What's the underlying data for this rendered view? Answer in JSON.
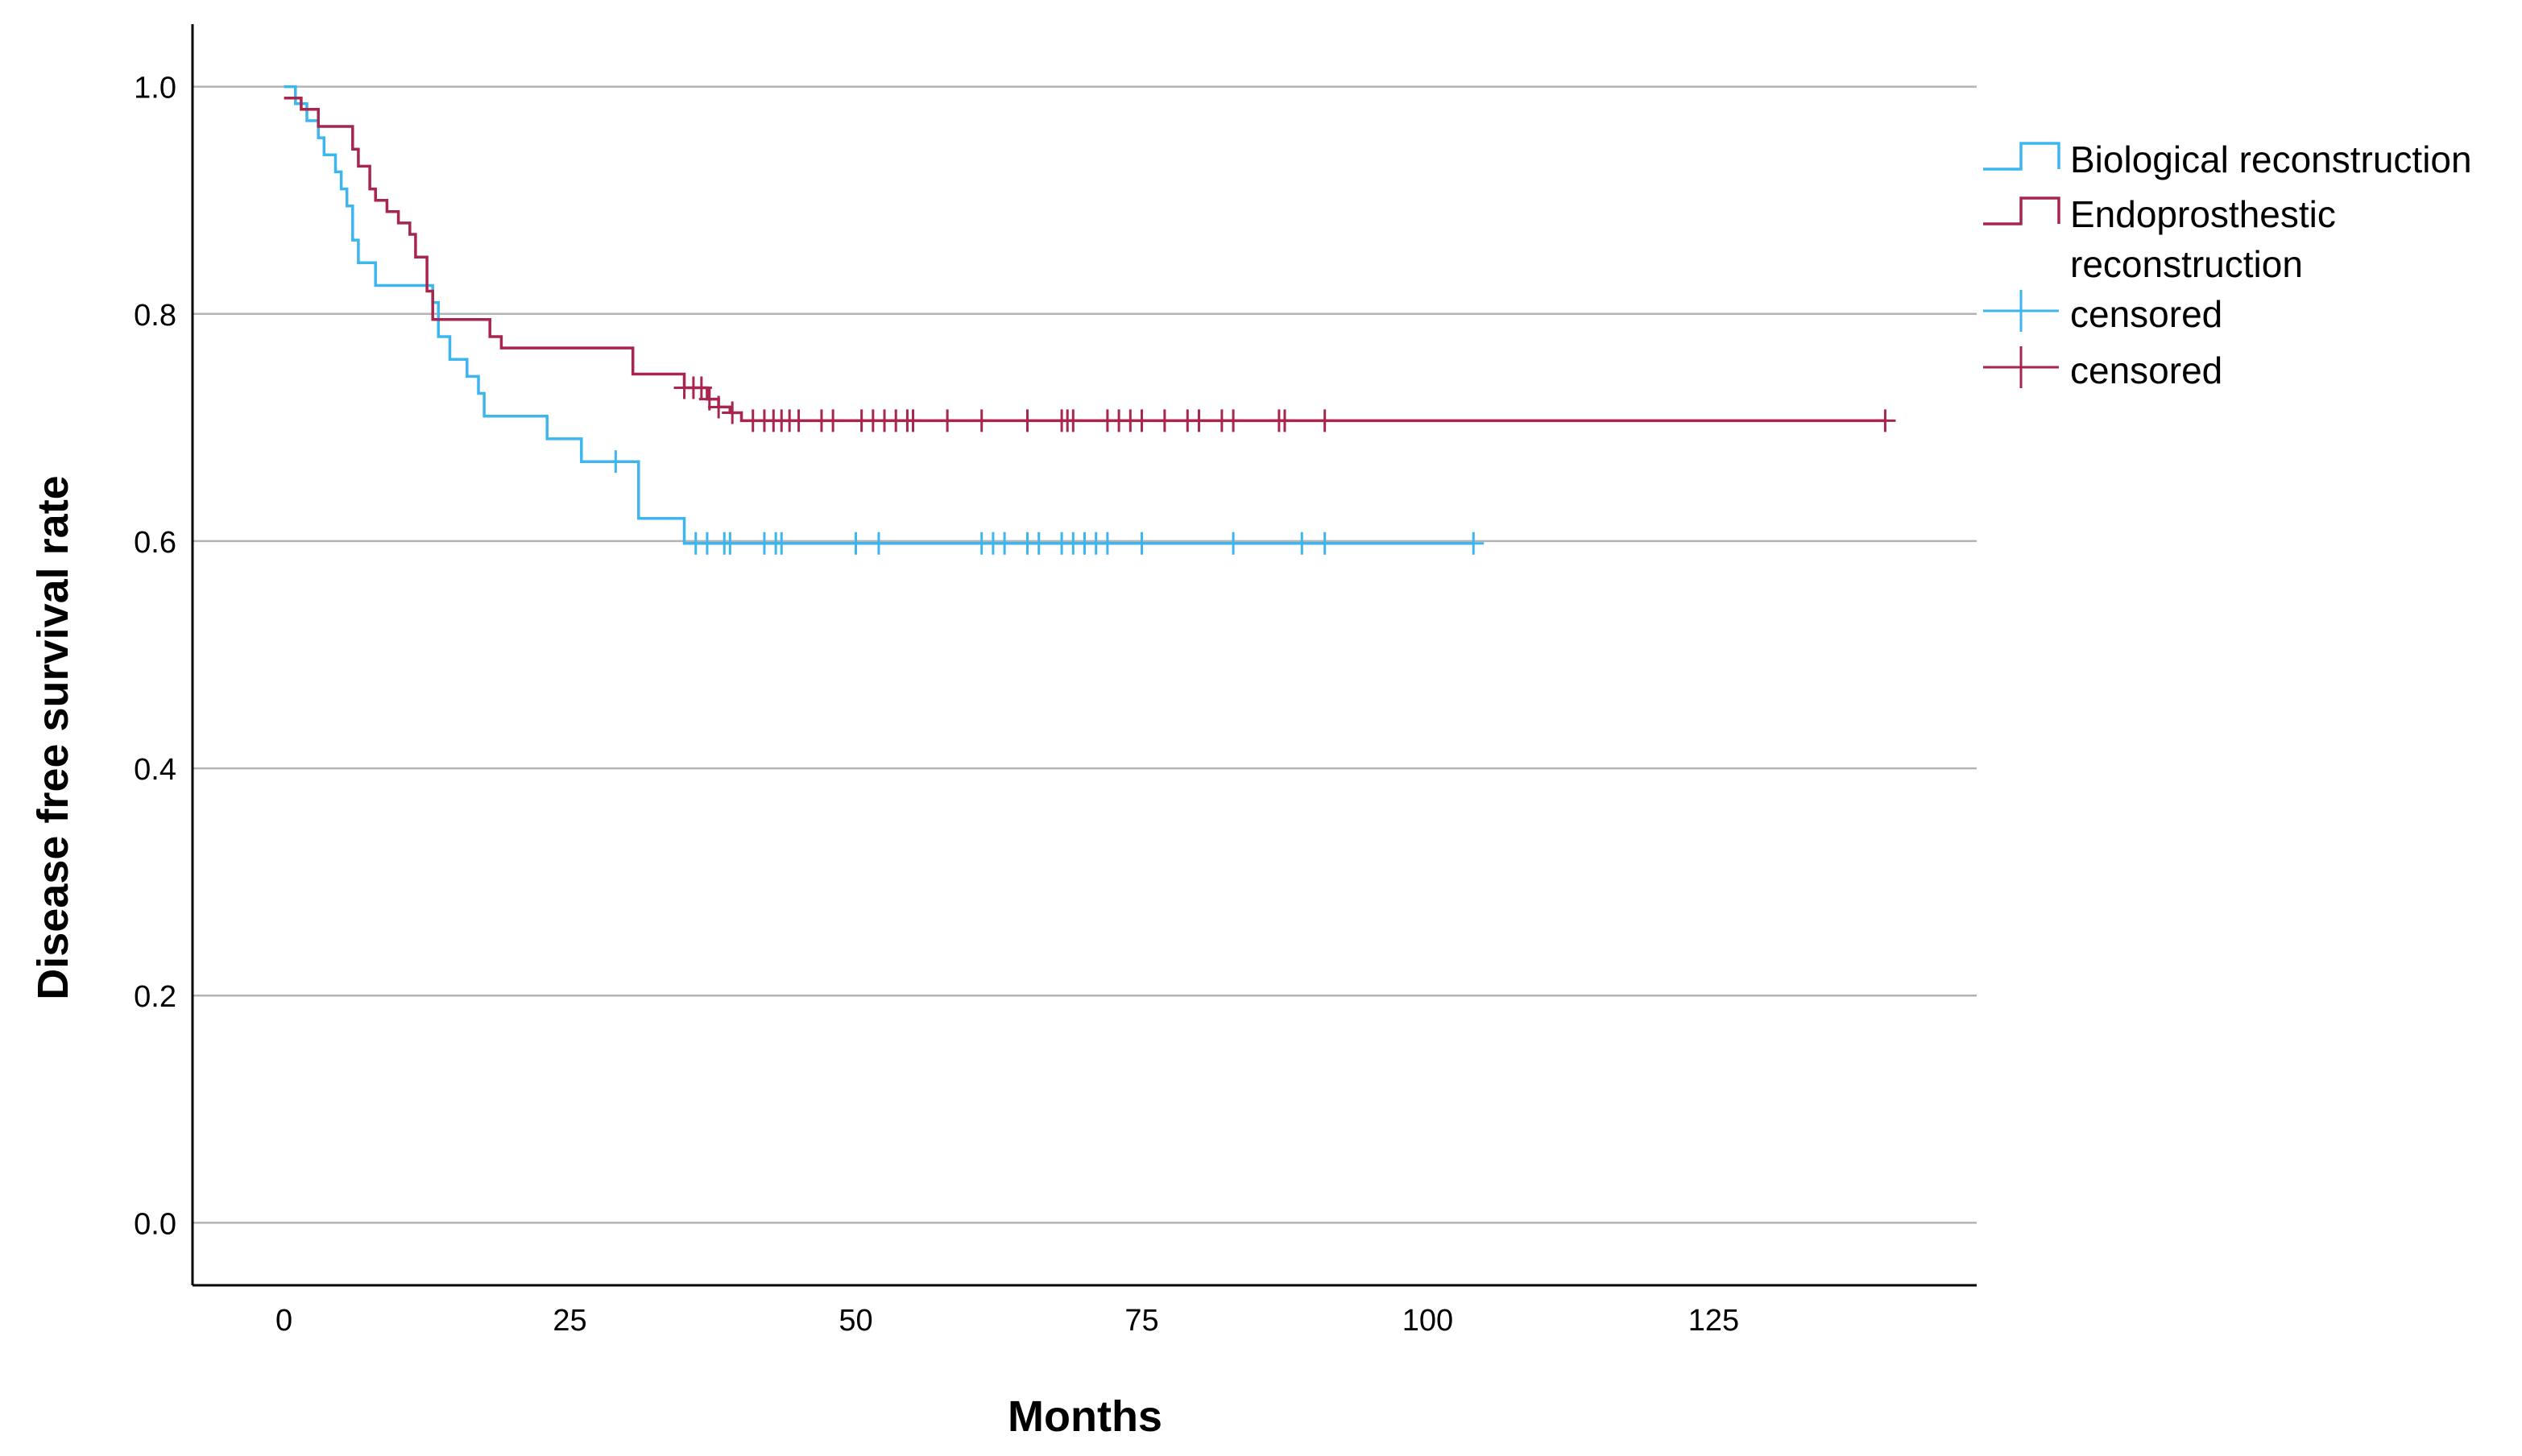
{
  "chart_data": {
    "type": "line",
    "title": "",
    "xlabel": "Months",
    "ylabel": "Disease free survival rate",
    "xlim": [
      -8,
      148
    ],
    "ylim": [
      -0.055,
      1.055
    ],
    "x_ticks": [
      0,
      25,
      50,
      75,
      100,
      125
    ],
    "x_tick_labels": [
      "0",
      "25",
      "50",
      "75",
      "100",
      "125"
    ],
    "y_ticks": [
      0.0,
      0.2,
      0.4,
      0.6,
      0.8,
      1.0
    ],
    "y_tick_labels": [
      "0.0",
      "0.2",
      "0.4",
      "0.6",
      "0.8",
      "1.0"
    ],
    "grid": "horizontal",
    "legend_position": "right",
    "legend": [
      {
        "label_lines": [
          "Biological reconstruction"
        ],
        "color": "#3db6ef",
        "symbol": "step"
      },
      {
        "label_lines": [
          "Endoprosthestic",
          "reconstruction"
        ],
        "color": "#a8264e",
        "symbol": "step"
      },
      {
        "label_lines": [
          "censored"
        ],
        "color": "#3db6ef",
        "symbol": "cross"
      },
      {
        "label_lines": [
          "censored"
        ],
        "color": "#a8264e",
        "symbol": "cross"
      }
    ],
    "series": [
      {
        "name": "Biological reconstruction",
        "color": "#3db6ef",
        "steps": [
          [
            0,
            1.0
          ],
          [
            1,
            0.985
          ],
          [
            2,
            0.97
          ],
          [
            3,
            0.955
          ],
          [
            3.5,
            0.94
          ],
          [
            4.5,
            0.925
          ],
          [
            5,
            0.91
          ],
          [
            5.5,
            0.895
          ],
          [
            6,
            0.865
          ],
          [
            6.5,
            0.845
          ],
          [
            8,
            0.825
          ],
          [
            13,
            0.81
          ],
          [
            13.5,
            0.78
          ],
          [
            14.5,
            0.76
          ],
          [
            16,
            0.745
          ],
          [
            17,
            0.73
          ],
          [
            17.5,
            0.71
          ],
          [
            23,
            0.69
          ],
          [
            26,
            0.67
          ],
          [
            31,
            0.62
          ],
          [
            35,
            0.598
          ],
          [
            104,
            0.598
          ]
        ],
        "censored": [
          29,
          36,
          37,
          38.5,
          39,
          42,
          43,
          43.5,
          50,
          52,
          61,
          62,
          63,
          65,
          66,
          68,
          69,
          70,
          71,
          72,
          75,
          83,
          89,
          91,
          104
        ]
      },
      {
        "name": "Endoprosthestic reconstruction",
        "color": "#a8264e",
        "steps": [
          [
            0,
            0.99
          ],
          [
            1.5,
            0.98
          ],
          [
            3,
            0.965
          ],
          [
            6,
            0.945
          ],
          [
            6.5,
            0.93
          ],
          [
            7.5,
            0.91
          ],
          [
            8,
            0.9
          ],
          [
            9,
            0.89
          ],
          [
            10,
            0.88
          ],
          [
            11,
            0.87
          ],
          [
            11.5,
            0.85
          ],
          [
            12.5,
            0.82
          ],
          [
            13,
            0.795
          ],
          [
            18,
            0.78
          ],
          [
            19,
            0.77
          ],
          [
            30.5,
            0.747
          ],
          [
            35,
            0.735
          ],
          [
            37,
            0.725
          ],
          [
            38,
            0.718
          ],
          [
            39,
            0.713
          ],
          [
            40,
            0.706
          ],
          [
            140,
            0.706
          ]
        ],
        "censored": [
          35,
          35.8,
          36.5,
          37.2,
          38,
          39.2,
          41,
          42,
          42.8,
          43.5,
          44.2,
          45,
          47,
          48,
          50.5,
          51.5,
          52.5,
          53.5,
          54.5,
          55,
          58,
          61,
          65,
          68,
          68.5,
          69,
          72,
          73,
          74,
          75,
          77,
          79,
          80,
          82,
          83,
          87,
          87.5,
          91,
          140
        ]
      }
    ]
  }
}
